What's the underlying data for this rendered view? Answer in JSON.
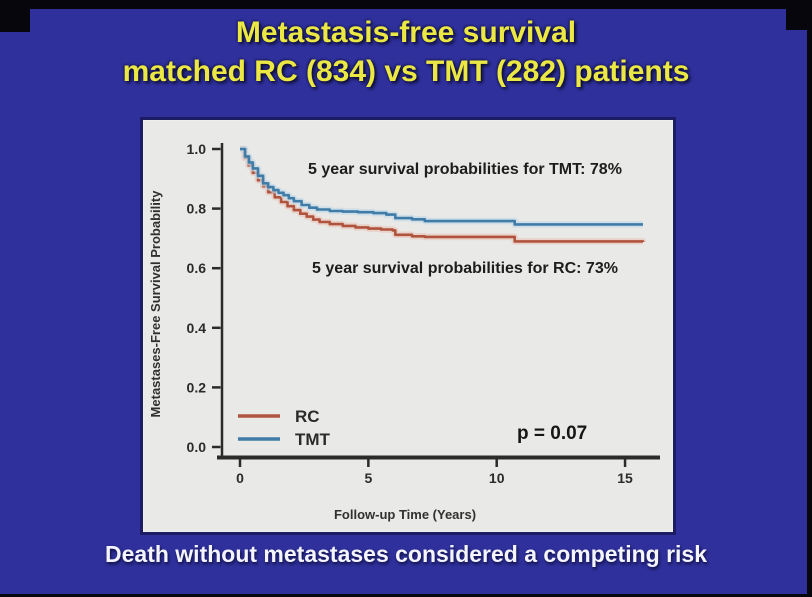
{
  "slide": {
    "title_line1": "Metastasis-free survival",
    "title_line2": "matched RC  (834) vs TMT (282) patients",
    "caption": "Death without metastases considered a competing risk"
  },
  "colors": {
    "slide_background": "#2f309c",
    "title_text": "#ece843",
    "caption_text": "#f4f5ff",
    "panel_background": "#e9e9e7",
    "panel_border": "#1b1c62",
    "axis": "#2b2b2b",
    "rc_curve": "#b0543e",
    "tmt_curve": "#3f7ca8"
  },
  "chart_data": {
    "type": "line",
    "subtype": "kaplan_meier_step",
    "title": "",
    "xlabel": "Follow-up Time (Years)",
    "ylabel": "Metastases-Free Survival Probability",
    "xlim": [
      0,
      16.5
    ],
    "ylim": [
      0.0,
      1.0
    ],
    "grid": false,
    "legend_position": "inside-lower-left",
    "x_tick_values": [
      0,
      5,
      10,
      15
    ],
    "x_tick_labels": [
      "0",
      "5",
      "10",
      "15"
    ],
    "y_tick_values": [
      1.0,
      0.8,
      0.6,
      0.4,
      0.2,
      0.0
    ],
    "y_tick_labels": [
      "1.0",
      "0.8",
      "0.6",
      "0.4",
      "0.2",
      "0.0"
    ],
    "annotations": [
      {
        "id": "tmt-5yr",
        "text": "5 year survival probabilities for TMT: 78%"
      },
      {
        "id": "rc-5yr",
        "text": "5 year survival probabilities for RC: 73%"
      },
      {
        "id": "p-value",
        "text": "p = 0.07"
      }
    ],
    "legend": [
      {
        "name": "RC",
        "color": "#b0543e"
      },
      {
        "name": "TMT",
        "color": "#3f7ca8"
      }
    ],
    "series": [
      {
        "name": "RC",
        "color": "#b0543e",
        "halo_color": "#eac6ba",
        "points": [
          [
            0,
            1.0
          ],
          [
            0.18,
            0.97
          ],
          [
            0.33,
            0.945
          ],
          [
            0.5,
            0.92
          ],
          [
            0.7,
            0.895
          ],
          [
            0.9,
            0.875
          ],
          [
            1.1,
            0.855
          ],
          [
            1.35,
            0.838
          ],
          [
            1.6,
            0.822
          ],
          [
            1.85,
            0.808
          ],
          [
            2.1,
            0.795
          ],
          [
            2.35,
            0.783
          ],
          [
            2.6,
            0.773
          ],
          [
            2.85,
            0.763
          ],
          [
            3.1,
            0.755
          ],
          [
            3.5,
            0.748
          ],
          [
            4.0,
            0.742
          ],
          [
            4.5,
            0.737
          ],
          [
            5.0,
            0.733
          ],
          [
            5.5,
            0.73
          ],
          [
            5.95,
            0.727
          ],
          [
            6.05,
            0.712
          ],
          [
            6.7,
            0.707
          ],
          [
            7.2,
            0.705
          ],
          [
            10.7,
            0.69
          ],
          [
            15.7,
            0.688
          ]
        ]
      },
      {
        "name": "TMT",
        "color": "#3f7ca8",
        "halo_color": "#c2d8e6",
        "points": [
          [
            0,
            1.0
          ],
          [
            0.2,
            0.975
          ],
          [
            0.35,
            0.955
          ],
          [
            0.5,
            0.935
          ],
          [
            0.7,
            0.91
          ],
          [
            0.9,
            0.885
          ],
          [
            1.1,
            0.872
          ],
          [
            1.3,
            0.862
          ],
          [
            1.5,
            0.853
          ],
          [
            1.7,
            0.845
          ],
          [
            1.9,
            0.835
          ],
          [
            2.1,
            0.825
          ],
          [
            2.4,
            0.812
          ],
          [
            2.7,
            0.803
          ],
          [
            3.0,
            0.797
          ],
          [
            3.5,
            0.792
          ],
          [
            4.0,
            0.79
          ],
          [
            4.6,
            0.788
          ],
          [
            5.2,
            0.785
          ],
          [
            5.7,
            0.78
          ],
          [
            6.05,
            0.768
          ],
          [
            6.7,
            0.764
          ],
          [
            7.2,
            0.758
          ],
          [
            10.7,
            0.747
          ],
          [
            15.7,
            0.747
          ]
        ]
      }
    ]
  }
}
